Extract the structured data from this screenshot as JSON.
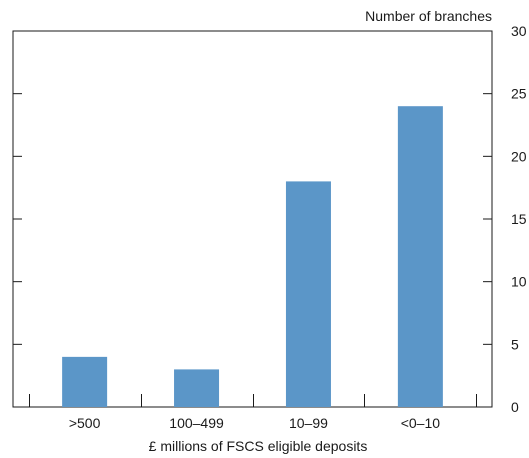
{
  "chart_data": {
    "type": "bar",
    "categories": [
      ">500",
      "100–499",
      "10–99",
      "<0–10"
    ],
    "values": [
      4,
      3,
      18,
      24
    ],
    "xlabel": "£ millions of FSCS eligible deposits",
    "ylabel": "Number of branches",
    "ylim": [
      0,
      30
    ],
    "yticks": [
      "0",
      "5",
      "10",
      "15",
      "20",
      "25",
      "30"
    ],
    "y_axis_side": "right",
    "grid": false,
    "bar_color": "#5b96c8"
  }
}
